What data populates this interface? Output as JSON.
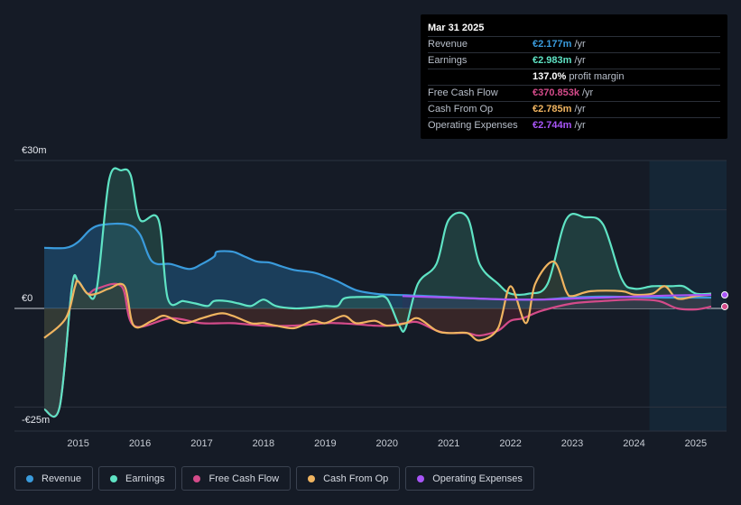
{
  "chart_data": {
    "type": "area",
    "title": "",
    "xlabel": "",
    "ylabel": "",
    "ylim": [
      -25,
      30
    ],
    "yticks": [
      {
        "value": 30,
        "label": "€30m"
      },
      {
        "value": 0,
        "label": "€0"
      },
      {
        "value": -25,
        "label": "-€25m"
      }
    ],
    "xlim": [
      2014.45,
      2025.3
    ],
    "xticks": [
      "2015",
      "2016",
      "2017",
      "2018",
      "2019",
      "2020",
      "2021",
      "2022",
      "2023",
      "2024",
      "2025"
    ],
    "forecast_shade_start": 2024.25,
    "series": [
      {
        "name": "Revenue",
        "color": "#3a9bdc",
        "fill": "#1d4b6e",
        "points": [
          [
            2014.45,
            12.3
          ],
          [
            2014.8,
            12.3
          ],
          [
            2015.0,
            13.5
          ],
          [
            2015.2,
            16.0
          ],
          [
            2015.4,
            17.0
          ],
          [
            2015.8,
            17.0
          ],
          [
            2016.0,
            15.0
          ],
          [
            2016.2,
            9.5
          ],
          [
            2016.5,
            9.0
          ],
          [
            2016.8,
            8.0
          ],
          [
            2017.0,
            9.0
          ],
          [
            2017.2,
            10.5
          ],
          [
            2017.25,
            11.5
          ],
          [
            2017.5,
            11.5
          ],
          [
            2017.7,
            10.5
          ],
          [
            2017.9,
            9.5
          ],
          [
            2018.1,
            9.3
          ],
          [
            2018.3,
            8.5
          ],
          [
            2018.5,
            7.8
          ],
          [
            2018.8,
            7.3
          ],
          [
            2019.0,
            6.5
          ],
          [
            2019.2,
            5.5
          ],
          [
            2019.5,
            3.7
          ],
          [
            2019.8,
            3.0
          ],
          [
            2020.0,
            2.8
          ],
          [
            2020.5,
            2.6
          ],
          [
            2021.0,
            2.3
          ],
          [
            2021.5,
            2.0
          ],
          [
            2022.0,
            1.8
          ],
          [
            2022.5,
            1.8
          ],
          [
            2023.0,
            2.2
          ],
          [
            2023.5,
            2.4
          ],
          [
            2024.0,
            2.3
          ],
          [
            2024.5,
            2.2
          ],
          [
            2025.0,
            2.2
          ],
          [
            2025.25,
            2.2
          ]
        ]
      },
      {
        "name": "Earnings",
        "color": "#5fe3c4",
        "fill": "#2a5952",
        "points": [
          [
            2014.45,
            -20.5
          ],
          [
            2014.7,
            -20.0
          ],
          [
            2014.9,
            4.5
          ],
          [
            2015.0,
            5.5
          ],
          [
            2015.15,
            3.0
          ],
          [
            2015.3,
            4.0
          ],
          [
            2015.5,
            26.0
          ],
          [
            2015.7,
            28.0
          ],
          [
            2015.85,
            27.0
          ],
          [
            2016.0,
            18.0
          ],
          [
            2016.3,
            18.0
          ],
          [
            2016.45,
            2.0
          ],
          [
            2016.7,
            1.5
          ],
          [
            2016.9,
            1.0
          ],
          [
            2017.1,
            0.5
          ],
          [
            2017.2,
            1.5
          ],
          [
            2017.4,
            1.5
          ],
          [
            2017.6,
            1.0
          ],
          [
            2017.8,
            0.5
          ],
          [
            2018.0,
            1.8
          ],
          [
            2018.2,
            0.5
          ],
          [
            2018.5,
            0.0
          ],
          [
            2018.8,
            0.2
          ],
          [
            2019.0,
            0.5
          ],
          [
            2019.2,
            0.5
          ],
          [
            2019.3,
            2.0
          ],
          [
            2019.5,
            2.3
          ],
          [
            2019.8,
            2.3
          ],
          [
            2020.0,
            2.0
          ],
          [
            2020.2,
            -3.5
          ],
          [
            2020.3,
            -4.0
          ],
          [
            2020.5,
            5.0
          ],
          [
            2020.8,
            9.0
          ],
          [
            2021.0,
            18.0
          ],
          [
            2021.3,
            18.5
          ],
          [
            2021.5,
            9.0
          ],
          [
            2021.8,
            5.0
          ],
          [
            2022.0,
            3.0
          ],
          [
            2022.3,
            3.0
          ],
          [
            2022.6,
            5.0
          ],
          [
            2022.9,
            18.0
          ],
          [
            2023.2,
            18.5
          ],
          [
            2023.5,
            17.0
          ],
          [
            2023.8,
            6.0
          ],
          [
            2024.0,
            4.0
          ],
          [
            2024.3,
            4.5
          ],
          [
            2024.6,
            4.5
          ],
          [
            2024.8,
            4.5
          ],
          [
            2025.0,
            3.0
          ],
          [
            2025.25,
            3.0
          ]
        ]
      },
      {
        "name": "Free Cash Flow",
        "color": "#d44b8a",
        "fill": "#4a1f2d",
        "points": [
          [
            2014.45,
            -20.5
          ],
          [
            2014.7,
            -20.0
          ],
          [
            2014.9,
            4.5
          ],
          [
            2015.0,
            5.5
          ],
          [
            2015.15,
            3.0
          ],
          [
            2015.3,
            4.0
          ],
          [
            2015.7,
            4.5
          ],
          [
            2015.9,
            -3.5
          ],
          [
            2016.5,
            -2.0
          ],
          [
            2017.0,
            -3.0
          ],
          [
            2017.5,
            -3.0
          ],
          [
            2018.0,
            -3.5
          ],
          [
            2018.5,
            -3.5
          ],
          [
            2019.0,
            -3.0
          ],
          [
            2019.2,
            -3.0
          ],
          [
            2019.5,
            -3.2
          ],
          [
            2019.8,
            -3.5
          ],
          [
            2020.0,
            -3.5
          ],
          [
            2020.3,
            -3.0
          ],
          [
            2020.5,
            -2.8
          ],
          [
            2020.8,
            -4.5
          ],
          [
            2021.0,
            -5.0
          ],
          [
            2021.3,
            -5.0
          ],
          [
            2021.5,
            -5.5
          ],
          [
            2021.8,
            -4.5
          ],
          [
            2022.0,
            -2.5
          ],
          [
            2022.2,
            -2.0
          ],
          [
            2022.5,
            -0.5
          ],
          [
            2023.0,
            1.0
          ],
          [
            2023.5,
            1.5
          ],
          [
            2024.0,
            1.8
          ],
          [
            2024.4,
            1.5
          ],
          [
            2024.7,
            0.0
          ],
          [
            2025.0,
            -0.2
          ],
          [
            2025.25,
            0.37
          ]
        ]
      },
      {
        "name": "Cash From Op",
        "color": "#f0b460",
        "fill": "#3d3425",
        "points": [
          [
            2014.45,
            -6.0
          ],
          [
            2014.8,
            -2.0
          ],
          [
            2014.95,
            4.5
          ],
          [
            2015.0,
            5.5
          ],
          [
            2015.15,
            3.0
          ],
          [
            2015.3,
            3.0
          ],
          [
            2015.5,
            4.0
          ],
          [
            2015.75,
            4.5
          ],
          [
            2015.9,
            -3.5
          ],
          [
            2016.2,
            -2.5
          ],
          [
            2016.4,
            -1.5
          ],
          [
            2016.7,
            -3.0
          ],
          [
            2017.0,
            -2.0
          ],
          [
            2017.3,
            -1.0
          ],
          [
            2017.5,
            -1.5
          ],
          [
            2017.8,
            -3.0
          ],
          [
            2018.0,
            -3.0
          ],
          [
            2018.2,
            -3.5
          ],
          [
            2018.5,
            -4.0
          ],
          [
            2018.8,
            -2.5
          ],
          [
            2019.0,
            -3.0
          ],
          [
            2019.3,
            -1.5
          ],
          [
            2019.5,
            -3.0
          ],
          [
            2019.8,
            -2.5
          ],
          [
            2020.0,
            -3.5
          ],
          [
            2020.3,
            -3.0
          ],
          [
            2020.5,
            -2.0
          ],
          [
            2020.8,
            -4.5
          ],
          [
            2021.0,
            -5.0
          ],
          [
            2021.3,
            -5.0
          ],
          [
            2021.5,
            -6.5
          ],
          [
            2021.8,
            -4.0
          ],
          [
            2022.0,
            4.5
          ],
          [
            2022.25,
            -3.0
          ],
          [
            2022.4,
            5.0
          ],
          [
            2022.7,
            9.5
          ],
          [
            2022.9,
            3.5
          ],
          [
            2023.0,
            2.5
          ],
          [
            2023.3,
            3.5
          ],
          [
            2023.8,
            3.5
          ],
          [
            2024.0,
            2.8
          ],
          [
            2024.3,
            3.0
          ],
          [
            2024.5,
            4.5
          ],
          [
            2024.7,
            2.0
          ],
          [
            2025.0,
            2.5
          ],
          [
            2025.25,
            2.8
          ]
        ]
      },
      {
        "name": "Operating Expenses",
        "color": "#a855f7",
        "fill": "#3a2a55",
        "points": [
          [
            2020.25,
            2.5
          ],
          [
            2020.5,
            2.4
          ],
          [
            2021.0,
            2.2
          ],
          [
            2021.5,
            2.0
          ],
          [
            2022.0,
            1.8
          ],
          [
            2022.5,
            1.8
          ],
          [
            2023.0,
            2.0
          ],
          [
            2023.5,
            2.2
          ],
          [
            2024.0,
            2.4
          ],
          [
            2024.5,
            2.6
          ],
          [
            2025.0,
            2.7
          ],
          [
            2025.25,
            2.74
          ]
        ]
      }
    ]
  },
  "tooltip": {
    "date": "Mar 31 2025",
    "rows": [
      {
        "label": "Revenue",
        "value": "€2.177m",
        "unit": "/yr",
        "color": "#3a9bdc"
      },
      {
        "label": "Earnings",
        "value": "€2.983m",
        "unit": "/yr",
        "color": "#5fe3c4"
      },
      {
        "label": "",
        "value": "137.0%",
        "unit": "profit margin",
        "color": "#ffffff"
      },
      {
        "label": "Free Cash Flow",
        "value": "€370.853k",
        "unit": "/yr",
        "color": "#d44b8a"
      },
      {
        "label": "Cash From Op",
        "value": "€2.785m",
        "unit": "/yr",
        "color": "#f0b460"
      },
      {
        "label": "Operating Expenses",
        "value": "€2.744m",
        "unit": "/yr",
        "color": "#a855f7"
      }
    ]
  },
  "legend": [
    {
      "label": "Revenue",
      "color": "#3a9bdc"
    },
    {
      "label": "Earnings",
      "color": "#5fe3c4"
    },
    {
      "label": "Free Cash Flow",
      "color": "#d44b8a"
    },
    {
      "label": "Cash From Op",
      "color": "#f0b460"
    },
    {
      "label": "Operating Expenses",
      "color": "#a855f7"
    }
  ]
}
